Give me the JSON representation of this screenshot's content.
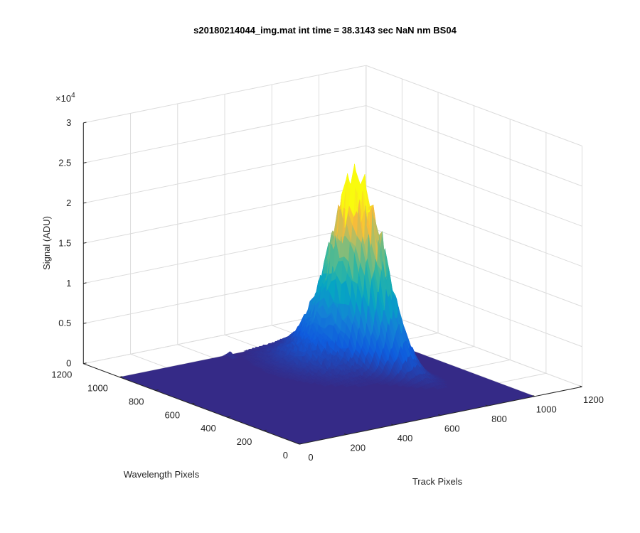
{
  "chart_data": {
    "type": "surface3d",
    "title": "s20180214044_img.mat int time = 38.3143 sec  NaN nm BS04",
    "xlabel": "Track Pixels",
    "ylabel": "Wavelength Pixels",
    "zlabel": "Signal (ADU)",
    "z_exponent_label": "×10",
    "z_exponent_power": "4",
    "xlim": [
      0,
      1200
    ],
    "ylim": [
      0,
      1200
    ],
    "zlim": [
      0,
      30000
    ],
    "x_ticks": [
      "0",
      "200",
      "400",
      "600",
      "800",
      "1000",
      "1200"
    ],
    "y_ticks": [
      "0",
      "200",
      "400",
      "600",
      "800",
      "1000",
      "1200"
    ],
    "z_ticks": [
      "0",
      "0.5",
      "1",
      "1.5",
      "2",
      "2.5",
      "3"
    ],
    "grid": true,
    "colormap": "parula",
    "surface_extent": {
      "x": [
        0,
        1000
      ],
      "y": [
        0,
        1000
      ]
    },
    "baseline": 0,
    "peak": {
      "x_center": 750,
      "x_spread": 40,
      "y_center": 650,
      "y_spread": 250,
      "max_value": 22000
    },
    "small_bump": {
      "x": 450,
      "y": 980,
      "value": 800
    }
  }
}
